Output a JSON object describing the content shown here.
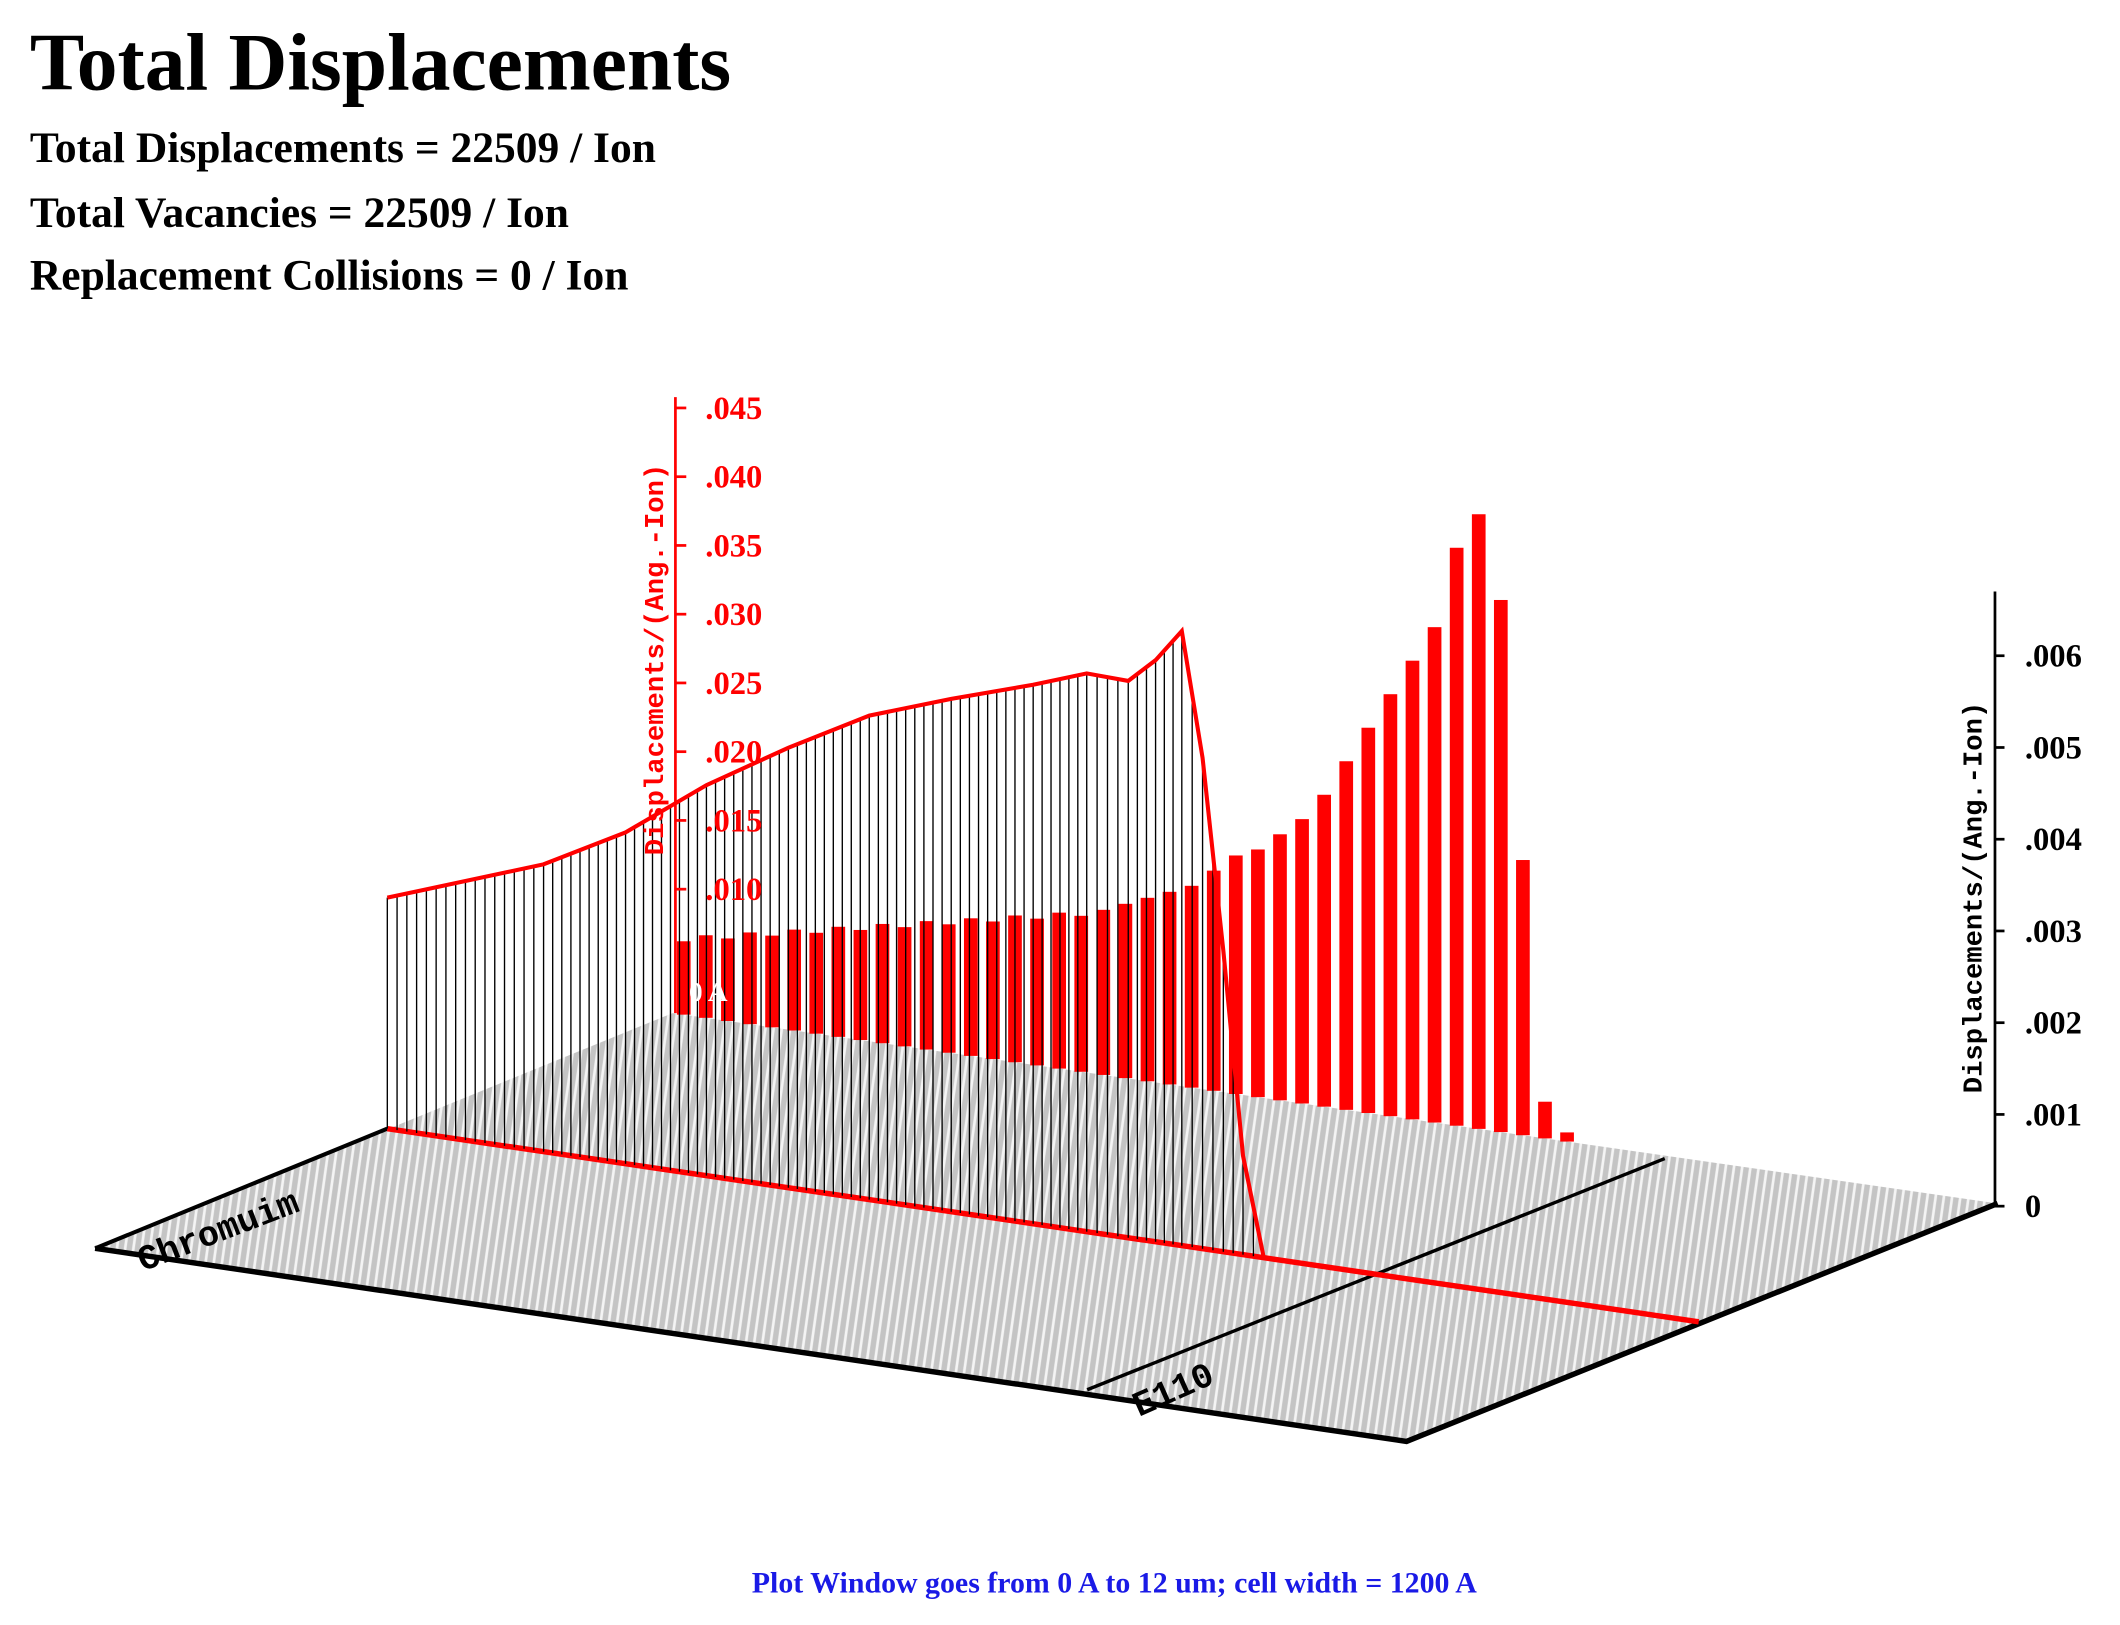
{
  "header": {
    "title": "Total Displacements",
    "lines": [
      "Total Displacements = 22509 / Ion",
      "Total Vacancies = 22509 / Ion",
      "Replacement Collisions = 0 / Ion"
    ]
  },
  "footer": "Plot Window goes from 0 A to 12 um;  cell width = 1200 A",
  "chart_data": [
    {
      "type": "line",
      "color": "#ff0000",
      "ylabel": "Displacements/(Ang.-Ion)",
      "annotations": [
        "0 A",
        "Chromuim",
        "E110"
      ],
      "xlim": [
        0,
        12
      ],
      "x": [
        0,
        1.43,
        2.18,
        2.92,
        3.67,
        4.41,
        5.16,
        5.91,
        6.4,
        6.78,
        7.03,
        7.27,
        7.46,
        7.65,
        7.83,
        8.02
      ],
      "values": [
        0.0168,
        0.0209,
        0.0241,
        0.0284,
        0.032,
        0.0352,
        0.0373,
        0.0392,
        0.0406,
        0.0405,
        0.0423,
        0.0447,
        0.0357,
        0.0219,
        0.0072,
        0
      ],
      "ylim": [
        0,
        0.045
      ],
      "yticks": [
        {
          "value": 0.01,
          "label": ".010"
        },
        {
          "value": 0.015,
          "label": ".015"
        },
        {
          "value": 0.02,
          "label": ".020"
        },
        {
          "value": 0.025,
          "label": ".025"
        },
        {
          "value": 0.03,
          "label": ".030"
        },
        {
          "value": 0.035,
          "label": ".035"
        },
        {
          "value": 0.04,
          "label": ".040"
        },
        {
          "value": 0.045,
          "label": ".045"
        }
      ]
    },
    {
      "type": "bar",
      "color": "#ff0000",
      "ylabel": "Displacements/(Ang.-Ion)",
      "values": [
        0.0008,
        0.0009,
        0.0009,
        0.001,
        0.001,
        0.0011,
        0.0011,
        0.0012,
        0.0012,
        0.0013,
        0.0013,
        0.0014,
        0.0014,
        0.0015,
        0.0015,
        0.0016,
        0.0016,
        0.0017,
        0.0017,
        0.0018,
        0.0019,
        0.002,
        0.0021,
        0.0022,
        0.0024,
        0.0026,
        0.0027,
        0.0029,
        0.0031,
        0.0034,
        0.0038,
        0.0042,
        0.0046,
        0.005,
        0.0054,
        0.0063,
        0.0067,
        0.0058,
        0.003,
        0.0004,
        0.0001,
        0,
        0,
        0,
        0,
        0,
        0,
        0,
        0,
        0,
        0,
        0,
        0,
        0,
        0,
        0,
        0,
        0,
        0,
        0
      ],
      "ylim": [
        0,
        0.0067
      ],
      "yticks": [
        0,
        {
          "value": 0.001,
          "label": ".001"
        },
        {
          "value": 0.002,
          "label": ".002"
        },
        {
          "value": 0.003,
          "label": ".003"
        },
        {
          "value": 0.004,
          "label": ".004"
        },
        {
          "value": 0.005,
          "label": ".005"
        },
        {
          "value": 0.006,
          "label": ".006"
        }
      ]
    }
  ]
}
